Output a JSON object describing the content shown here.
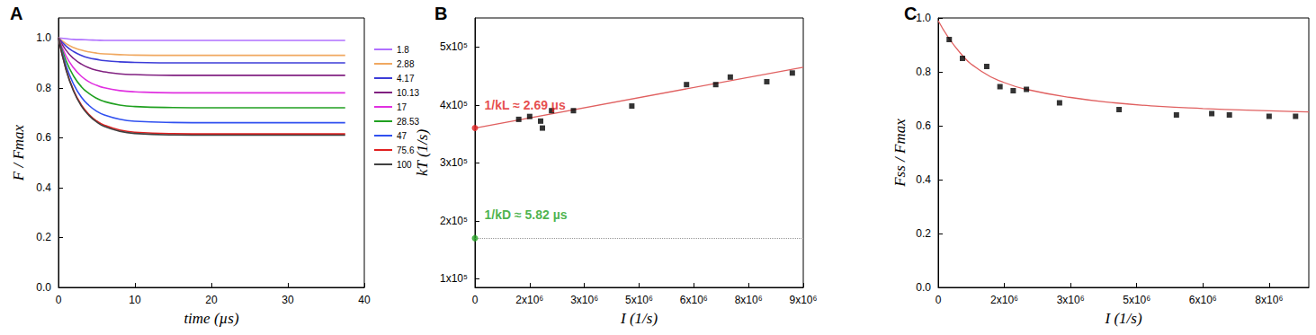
{
  "chart_data": [
    {
      "type": "line",
      "title": "A",
      "x_label": "time (µs)",
      "y_label": "F / Fmax",
      "x": [
        0,
        1,
        2,
        3,
        4,
        5,
        6,
        8,
        10,
        15,
        20,
        25,
        30,
        37.5
      ],
      "series": [
        {
          "name": "1.8",
          "color": "#b070ff",
          "values": [
            1,
            0.997,
            0.994,
            0.993,
            0.992,
            0.991,
            0.99,
            0.99,
            0.99,
            0.99,
            0.99,
            0.99,
            0.99,
            0.99
          ]
        },
        {
          "name": "2.88",
          "color": "#f0a860",
          "values": [
            1,
            0.977,
            0.961,
            0.951,
            0.944,
            0.939,
            0.936,
            0.933,
            0.931,
            0.93,
            0.93,
            0.93,
            0.93,
            0.93
          ]
        },
        {
          "name": "4.17",
          "color": "#3c3cd8",
          "values": [
            1,
            0.967,
            0.945,
            0.93,
            0.92,
            0.914,
            0.909,
            0.904,
            0.902,
            0.9,
            0.9,
            0.9,
            0.9,
            0.9
          ]
        },
        {
          "name": "10.13",
          "color": "#802080",
          "values": [
            1,
            0.95,
            0.917,
            0.895,
            0.88,
            0.87,
            0.864,
            0.856,
            0.853,
            0.85,
            0.85,
            0.85,
            0.85,
            0.85
          ]
        },
        {
          "name": "17",
          "color": "#e030e0",
          "values": [
            1,
            0.927,
            0.879,
            0.846,
            0.824,
            0.81,
            0.8,
            0.789,
            0.784,
            0.78,
            0.78,
            0.78,
            0.78,
            0.78
          ]
        },
        {
          "name": "28.53",
          "color": "#20a020",
          "values": [
            1,
            0.908,
            0.846,
            0.804,
            0.777,
            0.758,
            0.745,
            0.731,
            0.725,
            0.721,
            0.72,
            0.72,
            0.72,
            0.72
          ]
        },
        {
          "name": "47",
          "color": "#3050f0",
          "values": [
            1,
            0.888,
            0.813,
            0.762,
            0.729,
            0.706,
            0.691,
            0.674,
            0.666,
            0.661,
            0.66,
            0.66,
            0.66,
            0.66
          ]
        },
        {
          "name": "75.6",
          "color": "#e02020",
          "values": [
            1,
            0.873,
            0.788,
            0.731,
            0.693,
            0.667,
            0.65,
            0.631,
            0.622,
            0.616,
            0.615,
            0.615,
            0.615,
            0.615
          ]
        },
        {
          "name": "100",
          "color": "#404040",
          "values": [
            1,
            0.871,
            0.785,
            0.727,
            0.689,
            0.663,
            0.645,
            0.626,
            0.617,
            0.611,
            0.61,
            0.61,
            0.61,
            0.61
          ]
        }
      ],
      "xlim": [
        0,
        40
      ],
      "xticks": [
        0,
        10,
        20,
        30,
        40
      ],
      "ylim": [
        0,
        1.08
      ],
      "yticks": [
        {
          "value": 0,
          "label": "0.0"
        },
        {
          "value": 0.2,
          "label": "0.2"
        },
        {
          "value": 0.4,
          "label": "0.4"
        },
        {
          "value": 0.6,
          "label": "0.6"
        },
        {
          "value": 0.8,
          "label": "0.8"
        },
        {
          "value": 1,
          "label": "1.0"
        }
      ],
      "legend": "right",
      "grid": false
    },
    {
      "type": "scatter",
      "title": "B",
      "x_label": "I (1/s)",
      "y_label": "kT (1/s)",
      "x": [
        1200000,
        1500000,
        1800000,
        1850000,
        2100000,
        2700000,
        4300000,
        5800000,
        6600000,
        7000000,
        8000000,
        8700000
      ],
      "values": [
        375000,
        380000,
        372000,
        360000,
        390000,
        390000,
        398000,
        435000,
        435000,
        448000,
        440000,
        455000
      ],
      "color": "#000000",
      "marker": "square",
      "fit": {
        "type": "line",
        "color": "#e06060",
        "x": [
          0,
          9000000
        ],
        "values": [
          360000,
          465000
        ]
      },
      "annotations": [
        {
          "text": "1/kL ≈ 2.69 µs",
          "x": 0,
          "y": 360000,
          "color": "#e02020"
        },
        {
          "text": "1/kD ≈ 5.82 µs",
          "x": 0,
          "y": 170000,
          "color": "#20a020",
          "line_style": "dotted"
        }
      ],
      "xlim": [
        0,
        9000000
      ],
      "xticks": [
        0,
        {
          "value": 1500000,
          "label": "2x10⁶"
        },
        {
          "value": 3000000,
          "label": "3x10⁶"
        },
        {
          "value": 4500000,
          "label": "5x10⁶"
        },
        {
          "value": 6000000,
          "label": "6x10⁶"
        },
        {
          "value": 7500000,
          "label": "8x10⁶"
        },
        {
          "value": 9000000,
          "label": "9x10⁶"
        }
      ],
      "ylim": [
        85000,
        550000
      ],
      "yticks": [
        {
          "value": 100000,
          "label": "1x10⁵"
        },
        {
          "value": 200000,
          "label": "2x10⁵"
        },
        {
          "value": 300000,
          "label": "3x10⁵"
        },
        {
          "value": 400000,
          "label": "4x10⁵"
        },
        {
          "value": 500000,
          "label": "5x10⁵"
        }
      ],
      "grid": false
    },
    {
      "type": "scatter",
      "title": "C",
      "x_label": "I (1/s)",
      "y_label": "Fss / Fmax",
      "x": [
        250000,
        550000,
        1100000,
        1400000,
        1700000,
        2000000,
        2750000,
        4100000,
        5400000,
        6200000,
        6600000,
        7500000,
        8100000
      ],
      "values": [
        0.92,
        0.85,
        0.82,
        0.745,
        0.73,
        0.735,
        0.685,
        0.66,
        0.64,
        0.645,
        0.64,
        0.635,
        0.635
      ],
      "color": "#000000",
      "marker": "square",
      "fit": {
        "type": "line",
        "color": "#e06060",
        "x": [
          0,
          500000,
          1000000,
          1500000,
          2000000,
          3000000,
          4000000,
          5000000,
          6000000,
          7000000,
          8000000,
          8400000
        ],
        "values": [
          0.99,
          0.87,
          0.8,
          0.76,
          0.735,
          0.705,
          0.685,
          0.672,
          0.664,
          0.658,
          0.653,
          0.651
        ]
      },
      "xlim": [
        0,
        8400000
      ],
      "xticks": [
        0,
        {
          "value": 1500000,
          "label": "2x10⁶"
        },
        {
          "value": 3000000,
          "label": "3x10⁶"
        },
        {
          "value": 4500000,
          "label": "5x10⁶"
        },
        {
          "value": 6000000,
          "label": "6x10⁶"
        },
        {
          "value": 7500000,
          "label": "8x10⁶"
        }
      ],
      "ylim": [
        0,
        1
      ],
      "yticks": [
        {
          "value": 0,
          "label": "0.0"
        },
        {
          "value": 0.2,
          "label": "0.2"
        },
        {
          "value": 0.4,
          "label": "0.4"
        },
        {
          "value": 0.6,
          "label": "0.6"
        },
        {
          "value": 0.8,
          "label": "0.8"
        },
        {
          "value": 1,
          "label": "1.0"
        }
      ],
      "grid": false
    }
  ]
}
